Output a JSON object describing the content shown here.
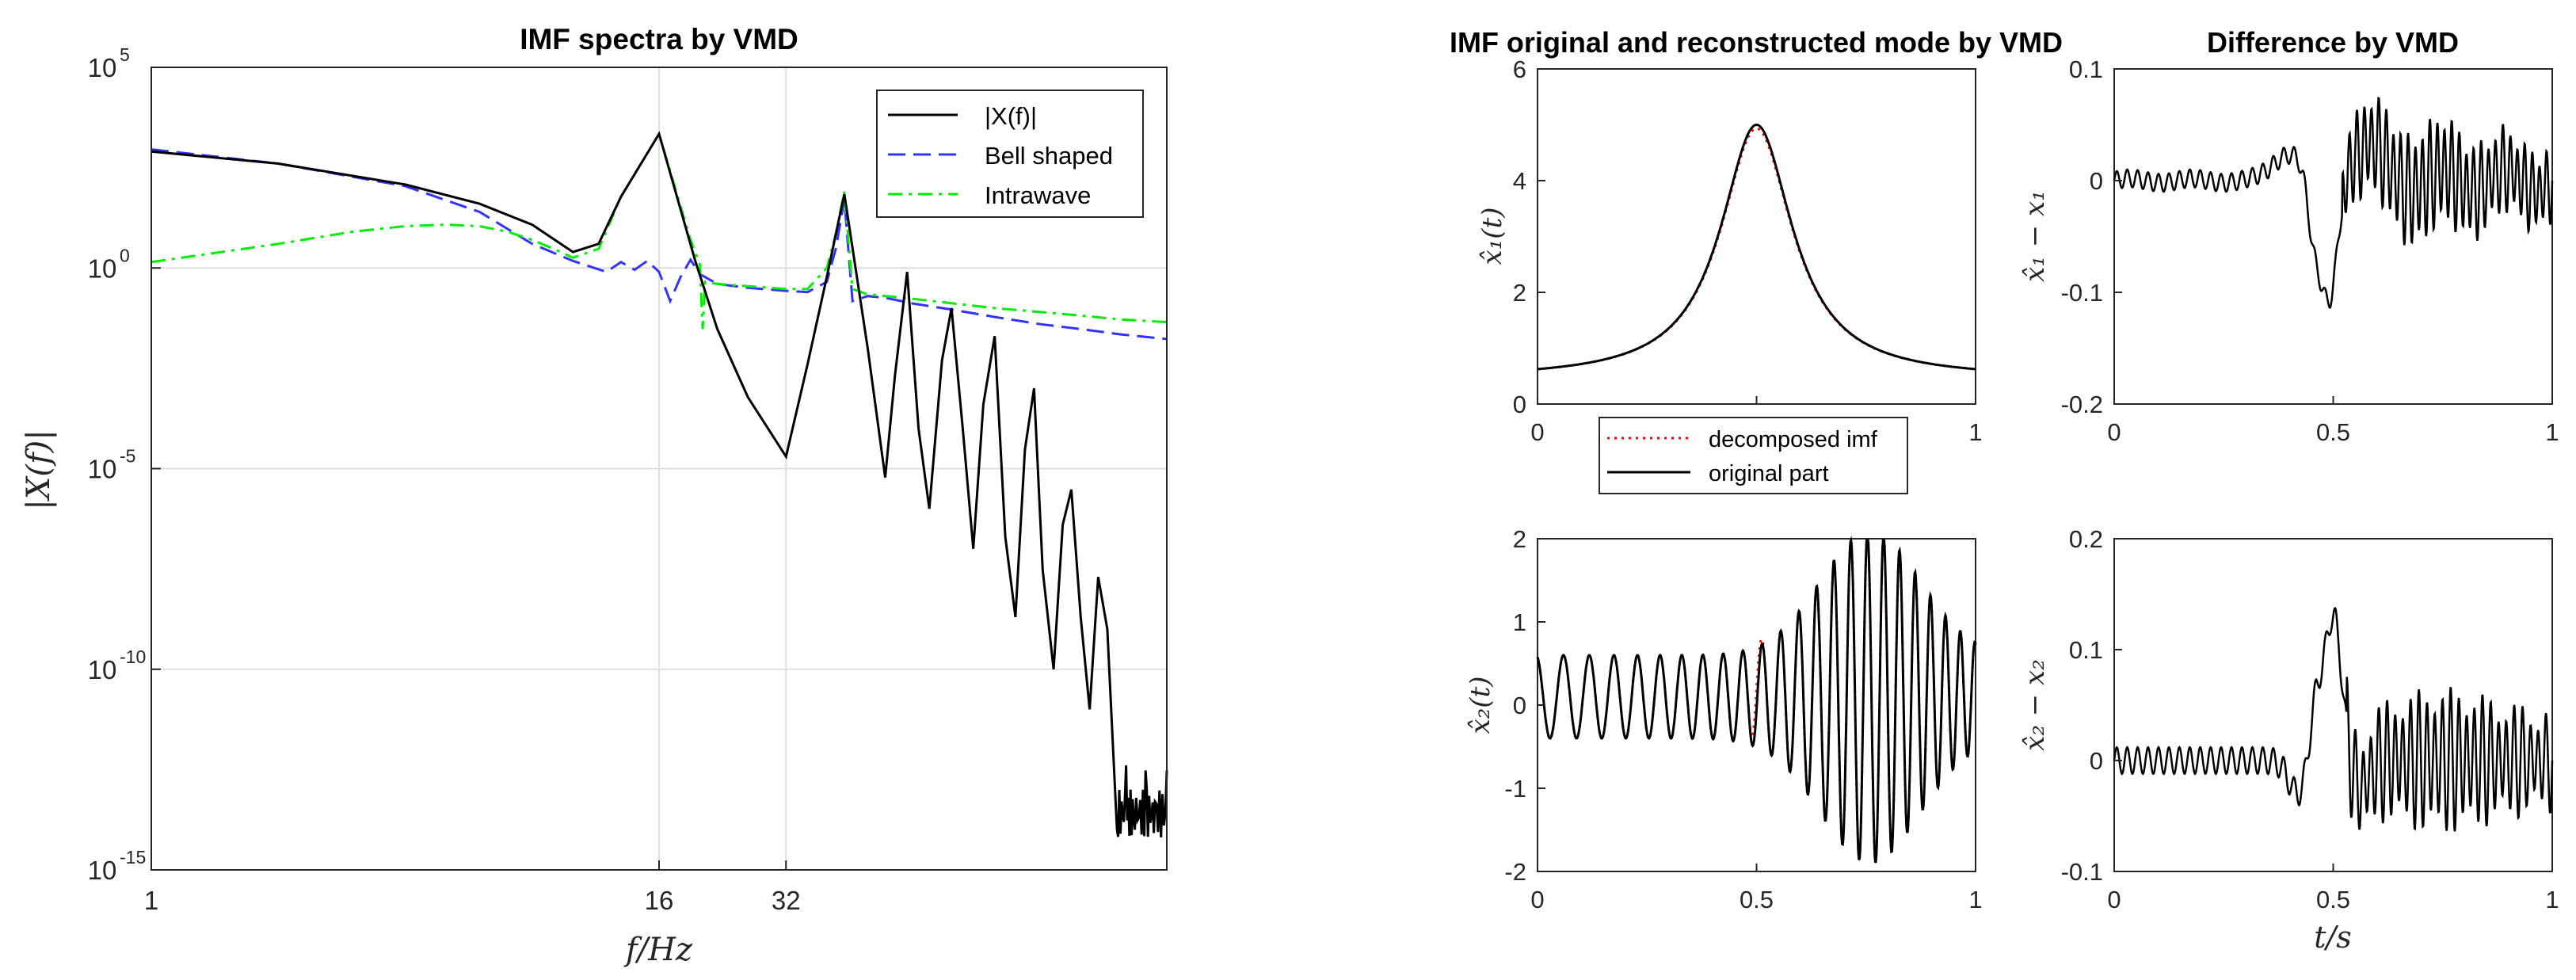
{
  "chart_data": [
    {
      "id": "spectra",
      "type": "line",
      "title": "IMF spectra by VMD",
      "xlabel": "f/Hz",
      "ylabel": "|X(f)|",
      "xscale": "log2",
      "yscale": "log10",
      "xlim": [
        1,
        256
      ],
      "ylim": [
        1e-15,
        100000
      ],
      "xtick_labels": [
        "1",
        "16",
        "32"
      ],
      "xtick_values": [
        1,
        16,
        32
      ],
      "ytick_values": [
        -15,
        -10,
        -5,
        0,
        5
      ],
      "ytick_labels": [
        "10",
        "10",
        "10",
        "10",
        "10"
      ],
      "ytick_exponents": [
        "-15",
        "-10",
        "-5",
        "0",
        "5"
      ],
      "grid": true,
      "legend_position": "top-right",
      "series": [
        {
          "name": "|X(f)|",
          "color": "#000000",
          "style": "solid",
          "x": [
            1,
            2,
            4,
            6,
            8,
            10,
            11.5,
            13,
            16,
            19.5,
            22,
            26,
            32,
            36,
            40,
            44,
            50,
            55,
            58,
            62,
            66,
            70,
            75,
            79,
            84,
            89,
            94,
            100,
            106,
            112,
            118,
            124,
            130,
            138,
            145,
            152,
            160,
            168,
            176,
            185,
            195,
            205,
            215,
            228,
            240,
            256
          ],
          "y": [
            800,
            400,
            120,
            40,
            12,
            2.5,
            4,
            60,
            2200,
            1.5,
            0.03,
            0.0006,
            2e-05,
            0.004,
            0.6,
            70,
            0.01,
            6e-06,
            0.002,
            0.8,
            0.0001,
            1e-06,
            0.005,
            0.1,
            0.0001,
            1e-07,
            0.0004,
            0.02,
            2e-07,
            2e-09,
            3e-05,
            0.001,
            3e-08,
            1e-10,
            4e-07,
            3e-06,
            2e-09,
            1e-11,
            2e-08,
            1e-09,
            1e-14,
            4e-13,
            1e-14,
            3e-13,
            5e-14,
            3e-13
          ]
        },
        {
          "name": "Bell shaped",
          "color": "#3333ff",
          "style": "dashed",
          "x": [
            1,
            2,
            4,
            6,
            8,
            10,
            12,
            13,
            14,
            15,
            16,
            17,
            18,
            19,
            20,
            22,
            26,
            32,
            36,
            40,
            42,
            44,
            46,
            50,
            55,
            60,
            64,
            80,
            100,
            128,
            160,
            200,
            256
          ],
          "y": [
            900,
            400,
            110,
            25,
            4,
            1.5,
            0.8,
            1.4,
            0.9,
            1.5,
            0.8,
            0.15,
            0.6,
            1.6,
            0.7,
            0.4,
            0.32,
            0.27,
            0.25,
            0.45,
            3,
            50,
            0.15,
            0.2,
            0.18,
            0.15,
            0.13,
            0.09,
            0.06,
            0.04,
            0.03,
            0.022,
            0.017
          ]
        },
        {
          "name": "Intrawave",
          "color": "#00ee00",
          "style": "dashdot",
          "x": [
            1,
            2,
            3,
            4,
            5,
            6,
            7,
            8,
            9,
            10,
            11.5,
            13,
            16,
            19,
            20,
            20.3,
            20.6,
            22,
            26,
            32,
            36,
            40,
            42,
            44,
            46,
            50,
            64,
            80,
            100,
            128,
            160,
            200,
            256
          ],
          "y": [
            1.4,
            4,
            8,
            11,
            12,
            11,
            8,
            5,
            3,
            1.8,
            3,
            60,
            2200,
            5,
            1.2,
            0.03,
            0.45,
            0.4,
            0.35,
            0.3,
            0.3,
            1,
            7,
            80,
            0.3,
            0.22,
            0.17,
            0.13,
            0.1,
            0.08,
            0.065,
            0.052,
            0.045
          ]
        }
      ]
    },
    {
      "id": "mode1",
      "type": "line",
      "title": "IMF original and reconstructed mode by VMD",
      "ylabel": "x̂1(t)",
      "xlim": [
        0,
        1
      ],
      "ylim": [
        0,
        6
      ],
      "xticks": [
        0,
        0.5,
        1
      ],
      "yticks": [
        0,
        2,
        4,
        6
      ],
      "xtick_labels": [
        "0",
        "0.5",
        "1"
      ],
      "ytick_labels": [
        "0",
        "2",
        "4",
        "6"
      ],
      "legend": [
        "decomposed imf",
        "original part"
      ],
      "legend_position": "bottom-center",
      "model": {
        "kind": "lorentzian",
        "baseline": 0.45,
        "amplitude": 4.55,
        "center": 0.5,
        "width": 0.1
      }
    },
    {
      "id": "diff1",
      "type": "line",
      "title": "Difference by VMD",
      "ylabel": "x̂1 − x1",
      "xlim": [
        0,
        1
      ],
      "ylim": [
        -0.2,
        0.1
      ],
      "xticks": [
        0,
        0.5,
        1
      ],
      "yticks": [
        -0.2,
        -0.1,
        0,
        0.1
      ],
      "xtick_labels": [
        "0",
        "0.5",
        "1"
      ],
      "ytick_labels": [
        "-0.2",
        "-0.1",
        "0",
        "0.1"
      ],
      "model": {
        "kind": "oscillation_difference",
        "base_amplitude": 0.01,
        "dip_center": 0.5,
        "dip_depth": 0.13,
        "post_amplitude": 0.04
      }
    },
    {
      "id": "mode2",
      "type": "line",
      "ylabel": "x̂2(t)",
      "xlim": [
        0,
        1
      ],
      "ylim": [
        -2,
        2
      ],
      "xticks": [
        0,
        0.5,
        1
      ],
      "yticks": [
        -2,
        -1,
        0,
        1,
        2
      ],
      "xtick_labels": [
        "0",
        "0.5",
        "1"
      ],
      "ytick_labels": [
        "-2",
        "-1",
        "0",
        "1",
        "2"
      ],
      "model": {
        "kind": "chirp_burst",
        "base_amplitude": 0.5,
        "burst_amplitude": 1.95,
        "burst_center": 0.75
      }
    },
    {
      "id": "diff2",
      "type": "line",
      "xlabel": "t/s",
      "ylabel": "x̂2 − x2",
      "xlim": [
        0,
        1
      ],
      "ylim": [
        -0.1,
        0.2
      ],
      "xticks": [
        0,
        0.5,
        1
      ],
      "yticks": [
        -0.1,
        0,
        0.1,
        0.2
      ],
      "xtick_labels": [
        "0",
        "0.5",
        "1"
      ],
      "ytick_labels": [
        "-0.1",
        "0",
        "0.1",
        "0.2"
      ],
      "model": {
        "kind": "oscillation_difference",
        "base_amplitude": 0.015,
        "peak_center": 0.5,
        "peak_height": 0.14,
        "post_amplitude": 0.05
      }
    }
  ],
  "colors": {
    "decomposed": "#ff0000",
    "original": "#000000",
    "axes": "#262626",
    "grid": "#dfdfdf"
  }
}
